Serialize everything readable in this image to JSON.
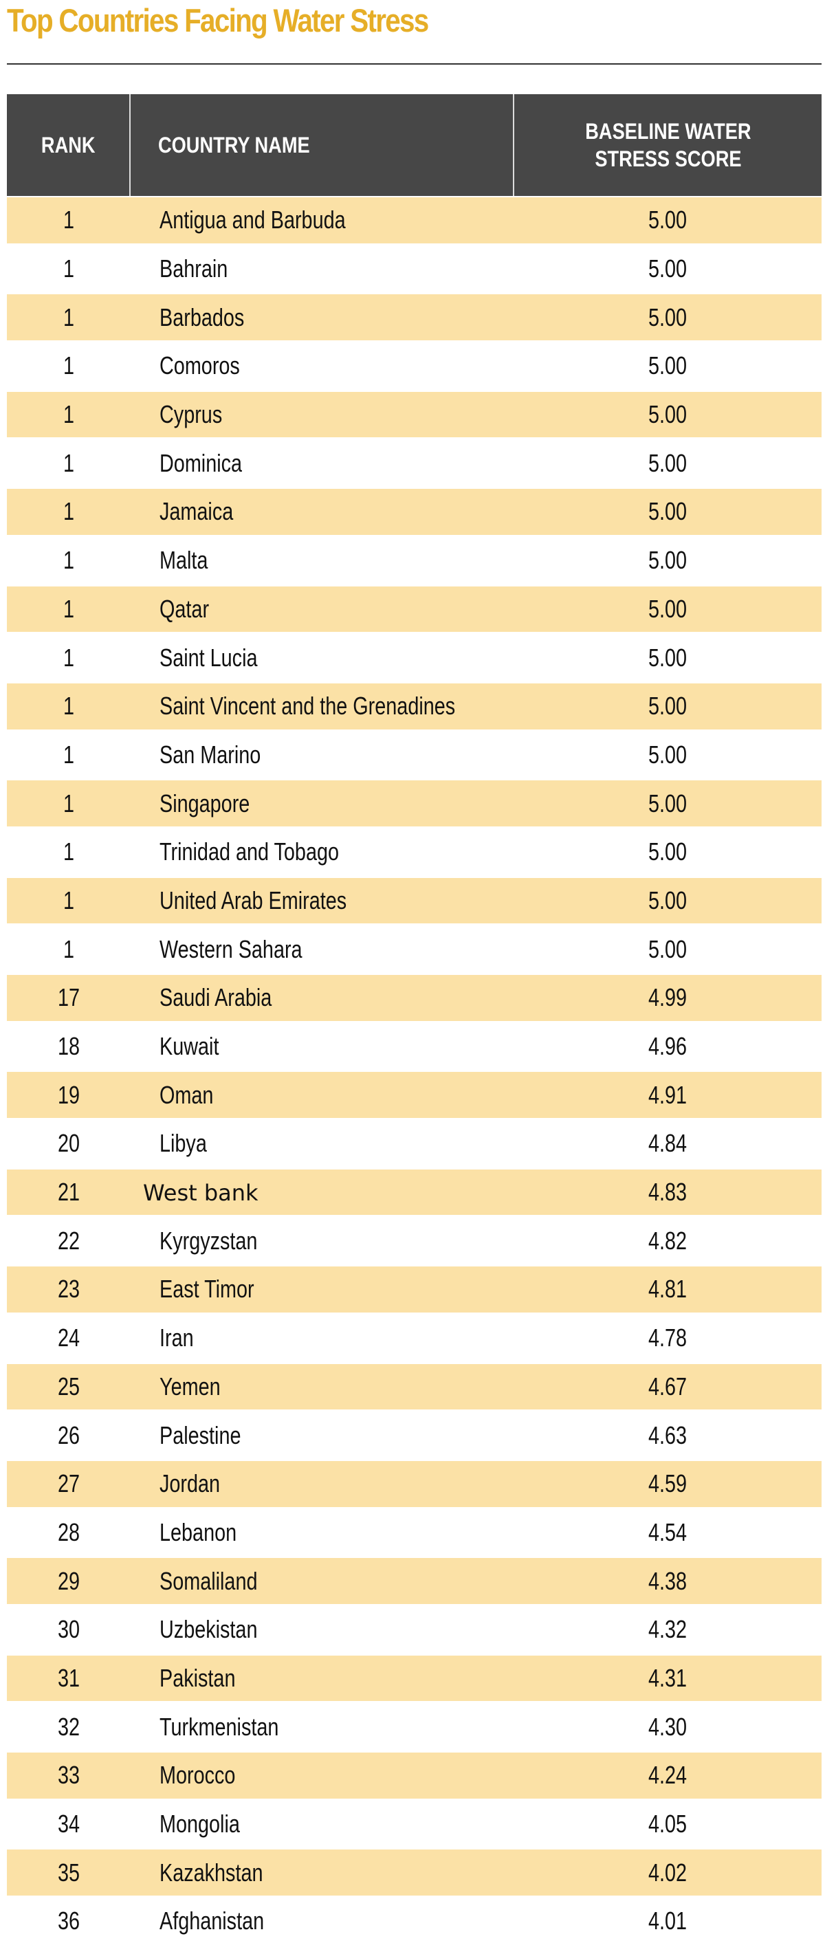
{
  "title": "Top Countries Facing Water Stress",
  "colors": {
    "title": "#E6AE27",
    "header_bg": "#474747",
    "row_alt": "#FBE1A6"
  },
  "table": {
    "headers": {
      "rank": "RANK",
      "country": "COUNTRY NAME",
      "score_line1": "BASELINE WATER",
      "score_line2": "STRESS SCORE"
    },
    "rows": [
      {
        "rank": "1",
        "country": "Antigua and Barbuda",
        "score": "5.00"
      },
      {
        "rank": "1",
        "country": "Bahrain",
        "score": "5.00"
      },
      {
        "rank": "1",
        "country": "Barbados",
        "score": "5.00"
      },
      {
        "rank": "1",
        "country": "Comoros",
        "score": "5.00"
      },
      {
        "rank": "1",
        "country": "Cyprus",
        "score": "5.00"
      },
      {
        "rank": "1",
        "country": "Dominica",
        "score": "5.00"
      },
      {
        "rank": "1",
        "country": "Jamaica",
        "score": "5.00"
      },
      {
        "rank": "1",
        "country": "Malta",
        "score": "5.00"
      },
      {
        "rank": "1",
        "country": "Qatar",
        "score": "5.00"
      },
      {
        "rank": "1",
        "country": "Saint Lucia",
        "score": "5.00"
      },
      {
        "rank": "1",
        "country": "Saint Vincent and the Grenadines",
        "score": "5.00"
      },
      {
        "rank": "1",
        "country": "San Marino",
        "score": "5.00"
      },
      {
        "rank": "1",
        "country": "Singapore",
        "score": "5.00"
      },
      {
        "rank": "1",
        "country": "Trinidad and Tobago",
        "score": "5.00"
      },
      {
        "rank": "1",
        "country": "United Arab Emirates",
        "score": "5.00"
      },
      {
        "rank": "1",
        "country": "Western Sahara",
        "score": "5.00"
      },
      {
        "rank": "17",
        "country": "Saudi Arabia",
        "score": "4.99"
      },
      {
        "rank": "18",
        "country": "Kuwait",
        "score": "4.96"
      },
      {
        "rank": "19",
        "country": "Oman",
        "score": "4.91"
      },
      {
        "rank": "20",
        "country": "Libya",
        "score": "4.84"
      },
      {
        "rank": "21",
        "country": "West bank",
        "score": "4.83"
      },
      {
        "rank": "22",
        "country": "Kyrgyzstan",
        "score": "4.82"
      },
      {
        "rank": "23",
        "country": "East Timor",
        "score": "4.81"
      },
      {
        "rank": "24",
        "country": "Iran",
        "score": "4.78"
      },
      {
        "rank": "25",
        "country": "Yemen",
        "score": "4.67"
      },
      {
        "rank": "26",
        "country": "Palestine",
        "score": "4.63"
      },
      {
        "rank": "27",
        "country": "Jordan",
        "score": "4.59"
      },
      {
        "rank": "28",
        "country": "Lebanon",
        "score": "4.54"
      },
      {
        "rank": "29",
        "country": "Somaliland",
        "score": "4.38"
      },
      {
        "rank": "30",
        "country": "Uzbekistan",
        "score": "4.32"
      },
      {
        "rank": "31",
        "country": "Pakistan",
        "score": "4.31"
      },
      {
        "rank": "32",
        "country": "Turkmenistan",
        "score": "4.30"
      },
      {
        "rank": "33",
        "country": "Morocco",
        "score": "4.24"
      },
      {
        "rank": "34",
        "country": "Mongolia",
        "score": "4.05"
      },
      {
        "rank": "35",
        "country": "Kazakhstan",
        "score": "4.02"
      },
      {
        "rank": "36",
        "country": "Afghanistan",
        "score": "4.01"
      }
    ]
  }
}
